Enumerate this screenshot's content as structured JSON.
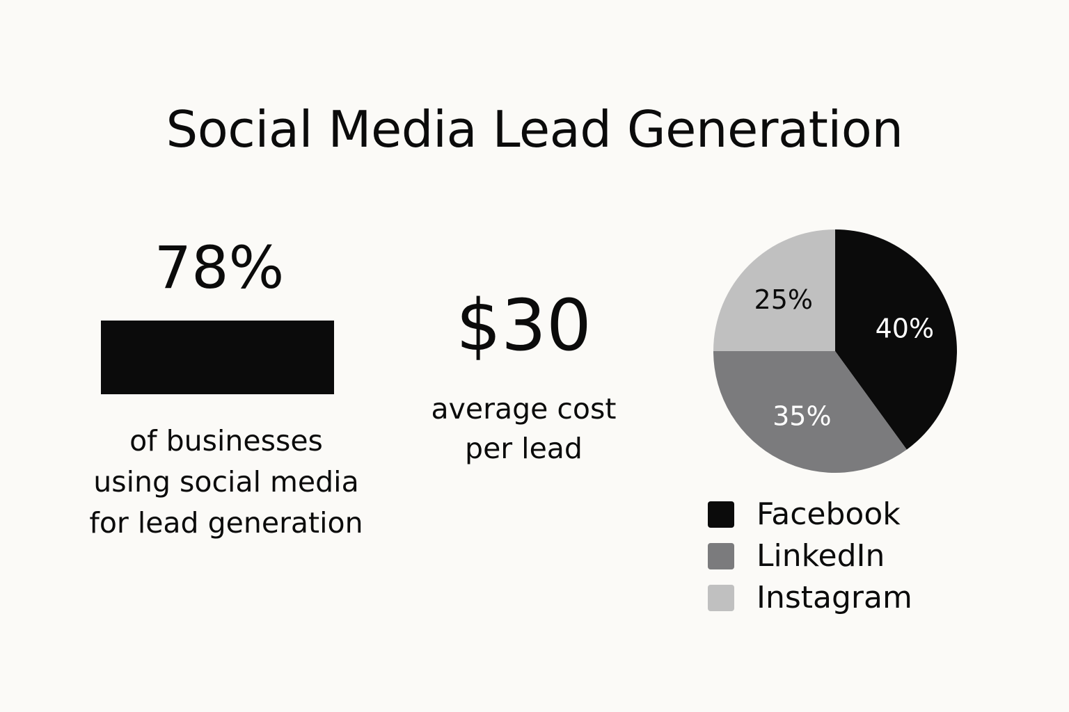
{
  "title": "Social Media Lead Generation",
  "stat_businesses": {
    "value": "78%",
    "fraction": 1.0,
    "caption_lines": [
      "of businesses",
      "using social media",
      "for lead generation"
    ]
  },
  "stat_cost": {
    "value": "$30",
    "caption_lines": [
      "average cost",
      "per lead"
    ]
  },
  "colors": {
    "background": "#fbfaf7",
    "text": "#0b0b0b",
    "facebook": "#0b0b0b",
    "linkedin": "#7b7b7d",
    "instagram": "#c0c0c0"
  },
  "chart_data": {
    "type": "pie",
    "slices": [
      {
        "name": "Facebook",
        "value": 40,
        "label": "40%",
        "color": "#0b0b0b",
        "label_color": "#ffffff"
      },
      {
        "name": "LinkedIn",
        "value": 35,
        "label": "35%",
        "color": "#7b7b7d",
        "label_color": "#ffffff"
      },
      {
        "name": "Instagram",
        "value": 25,
        "label": "25%",
        "color": "#c0c0c0",
        "label_color": "#0b0b0b"
      }
    ],
    "legend_position": "bottom"
  }
}
